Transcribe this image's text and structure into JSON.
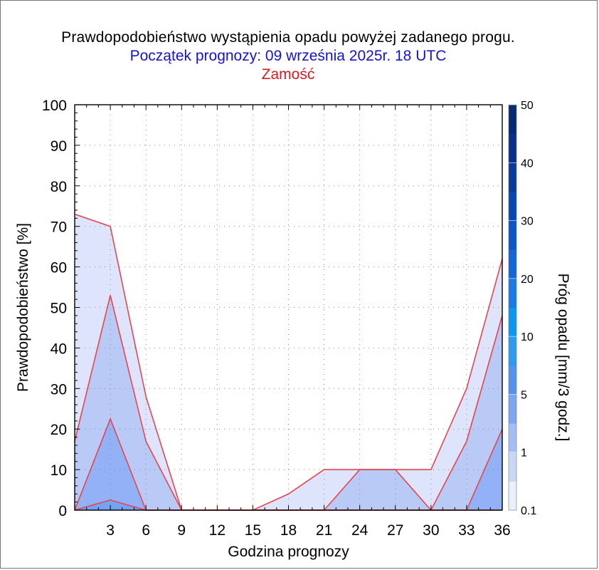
{
  "title": {
    "line1": "Prawdopodobieństwo wystąpienia opadu powyżej zadanego progu.",
    "line2": "Początek prognozy: 09 września 2025r. 18 UTC",
    "line3": "Zamość"
  },
  "colors": {
    "title_line2": "#1212e0",
    "title_line3": "#e0181c",
    "series_line": "#e8444c",
    "band_0_1": "#dde4fb",
    "band_1": "#b9caf6",
    "band_5": "#93b1f6",
    "band_10": "#74a2f4"
  },
  "chart_data": {
    "type": "area",
    "xlabel": "Godzina prognozy",
    "ylabel": "Prawdopodobieństwo [%]",
    "xlim": [
      0,
      36
    ],
    "ylim": [
      0,
      100
    ],
    "x_ticks": [
      3,
      6,
      9,
      12,
      15,
      18,
      21,
      24,
      27,
      30,
      33,
      36
    ],
    "y_ticks": [
      0,
      10,
      20,
      30,
      40,
      50,
      60,
      70,
      80,
      90,
      100
    ],
    "grid": true,
    "x": [
      0,
      3,
      6,
      9,
      12,
      15,
      18,
      21,
      24,
      27,
      30,
      33,
      36
    ],
    "series": [
      {
        "name": "0.1",
        "values": [
          73,
          70,
          28,
          0,
          0,
          0,
          4,
          10,
          10,
          10,
          10,
          30,
          62
        ]
      },
      {
        "name": "1",
        "values": [
          17,
          53,
          17,
          0,
          0,
          0,
          0,
          0,
          10,
          10,
          0,
          17,
          48
        ]
      },
      {
        "name": "5",
        "values": [
          0,
          22.5,
          0,
          0,
          0,
          0,
          0,
          0,
          0,
          0,
          0,
          0,
          20
        ]
      },
      {
        "name": "10",
        "values": [
          0,
          2.5,
          0,
          0,
          0,
          0,
          0,
          0,
          0,
          0,
          0,
          0,
          0
        ]
      }
    ],
    "colorbar": {
      "title": "Próg opadu [mm/3 godz.]",
      "levels": [
        "0.1",
        "1",
        "5",
        "10",
        "20",
        "30",
        "40",
        "50"
      ],
      "colors": [
        "#ebeefb",
        "#c8d6f8",
        "#a4bdf5",
        "#7aa6f2",
        "#5591ee",
        "#2c9bf0",
        "#0c97f3",
        "#1a7be6",
        "#1366d8",
        "#0a56c7",
        "#0847b3",
        "#083c9c",
        "#083089",
        "#072a76"
      ]
    }
  }
}
